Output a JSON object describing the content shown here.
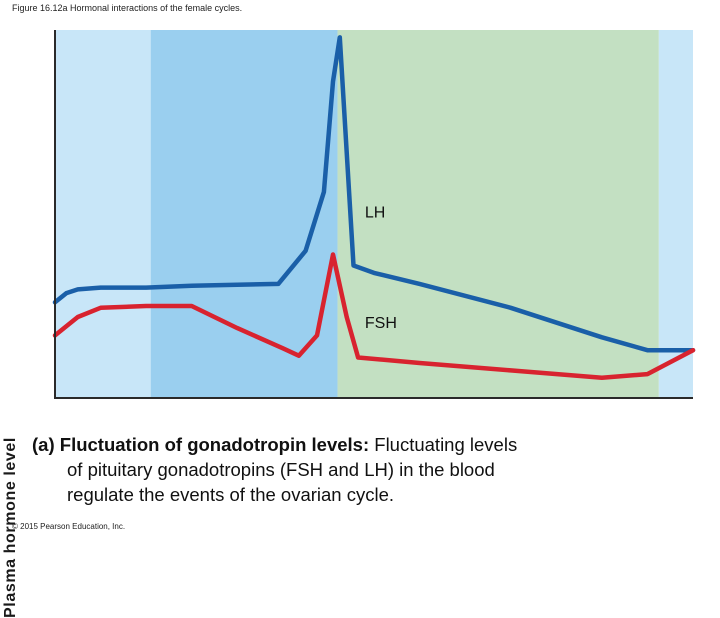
{
  "figure_title": "Figure 16.12a Hormonal interactions of the female cycles.",
  "caption": {
    "tag": "(a)",
    "lead": "Fluctuation of gonadotropin levels:",
    "line1_rest": " Fluctuating levels",
    "line2": "of pituitary gonadotropins (FSH and LH) in the blood",
    "line3": "regulate the events of the ovarian cycle."
  },
  "copyright": "© 2015 Pearson Education, Inc.",
  "colors": {
    "lh": "#1a5fa8",
    "fsh": "#d8232f",
    "band_light_blue": "#c8e6f8",
    "band_mid_blue": "#9acfef",
    "band_green": "#c3e0c2",
    "axis": "#2a2a2a"
  },
  "chart_data": {
    "type": "line",
    "title": "",
    "xlabel": "",
    "ylabel": "Plasma hormone level",
    "xlim": [
      0,
      28
    ],
    "ylim": [
      0,
      100
    ],
    "grid": false,
    "bands": [
      {
        "from": 0,
        "to": 4.2,
        "color": "#c8e6f8"
      },
      {
        "from": 4.2,
        "to": 12.4,
        "color": "#9acfef"
      },
      {
        "from": 12.4,
        "to": 26.5,
        "color": "#c3e0c2"
      },
      {
        "from": 26.5,
        "to": 28,
        "color": "#c8e6f8"
      }
    ],
    "series": [
      {
        "name": "LH",
        "color": "#1a5fa8",
        "x": [
          0,
          0.5,
          1,
          2,
          4,
          6,
          8,
          9.8,
          11,
          11.8,
          12.2,
          12.5,
          13.1,
          14,
          16,
          20,
          24,
          26,
          28
        ],
        "y": [
          26,
          28.5,
          29.5,
          30,
          30,
          30.5,
          30.8,
          31,
          40,
          56,
          86,
          98,
          36,
          34,
          31,
          24.5,
          16.5,
          13,
          13
        ]
      },
      {
        "name": "FSH",
        "color": "#d8232f",
        "x": [
          0,
          1,
          2,
          4,
          6,
          8,
          10,
          10.7,
          11.5,
          12.2,
          12.8,
          13.3,
          16,
          20,
          24,
          26,
          28
        ],
        "y": [
          17,
          22,
          24.5,
          25,
          25,
          19,
          13.5,
          11.5,
          17,
          39,
          22,
          11,
          9.5,
          7.5,
          5.5,
          6.5,
          13
        ]
      }
    ]
  }
}
